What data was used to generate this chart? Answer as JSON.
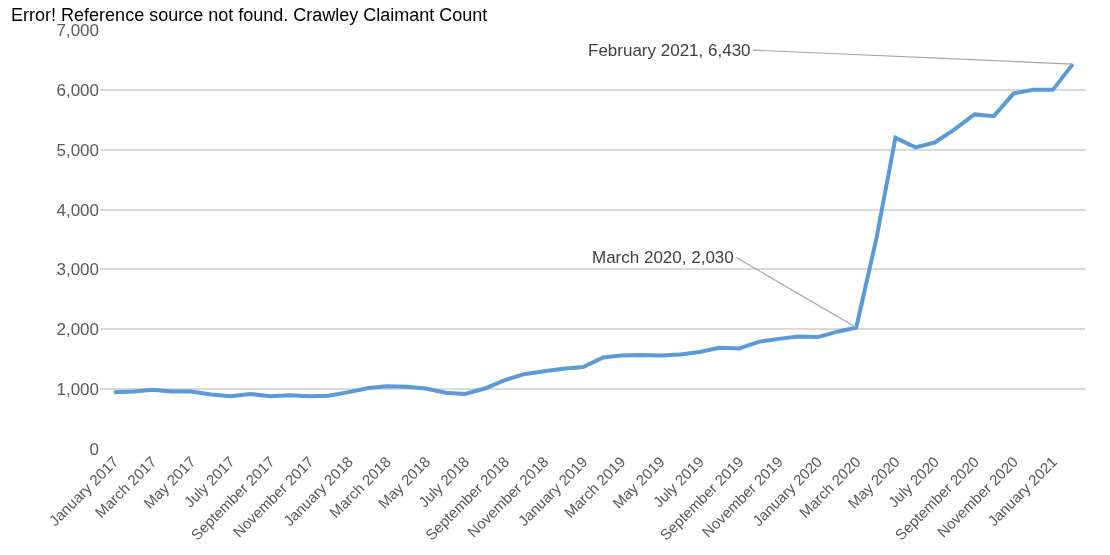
{
  "chart_data": {
    "type": "line",
    "title": "Error! Reference source not found. Crawley Claimant Count",
    "x": [
      "2017-01",
      "2017-02",
      "2017-03",
      "2017-04",
      "2017-05",
      "2017-06",
      "2017-07",
      "2017-08",
      "2017-09",
      "2017-10",
      "2017-11",
      "2017-12",
      "2018-01",
      "2018-02",
      "2018-03",
      "2018-04",
      "2018-05",
      "2018-06",
      "2018-07",
      "2018-08",
      "2018-09",
      "2018-10",
      "2018-11",
      "2018-12",
      "2019-01",
      "2019-02",
      "2019-03",
      "2019-04",
      "2019-05",
      "2019-06",
      "2019-07",
      "2019-08",
      "2019-09",
      "2019-10",
      "2019-11",
      "2019-12",
      "2020-01",
      "2020-02",
      "2020-03",
      "2020-04",
      "2020-05",
      "2020-06",
      "2020-07",
      "2020-08",
      "2020-09",
      "2020-10",
      "2020-11",
      "2020-12",
      "2021-01",
      "2021-02"
    ],
    "series": [
      {
        "color": "#5b9bd5",
        "values": [
          950,
          960,
          990,
          960,
          960,
          910,
          880,
          920,
          880,
          900,
          880,
          890,
          950,
          1020,
          1050,
          1040,
          1010,
          940,
          920,
          1010,
          1150,
          1250,
          1300,
          1340,
          1370,
          1530,
          1560,
          1570,
          1560,
          1580,
          1620,
          1690,
          1680,
          1790,
          1840,
          1880,
          1870,
          1960,
          2030,
          3500,
          5200,
          5040,
          5120,
          5340,
          5590,
          5560,
          5940,
          6000,
          6000,
          6430
        ]
      }
    ],
    "annotations": [
      {
        "text": "March 2020, 2,030",
        "x": "2020-03",
        "y": 2030
      },
      {
        "text": "February 2021, 6,430",
        "x": "2021-02",
        "y": 6430
      }
    ],
    "xlim": [
      "2016-12-10",
      "2021-02-20"
    ],
    "xticks": [
      {
        "value": "2017-01",
        "label": "January 2017"
      },
      {
        "value": "2017-03",
        "label": "March 2017"
      },
      {
        "value": "2017-05",
        "label": "May 2017"
      },
      {
        "value": "2017-07",
        "label": "July 2017"
      },
      {
        "value": "2017-09",
        "label": "September 2017"
      },
      {
        "value": "2017-11",
        "label": "November 2017"
      },
      {
        "value": "2018-01",
        "label": "January 2018"
      },
      {
        "value": "2018-03",
        "label": "March 2018"
      },
      {
        "value": "2018-05",
        "label": "May 2018"
      },
      {
        "value": "2018-07",
        "label": "July 2018"
      },
      {
        "value": "2018-09",
        "label": "September 2018"
      },
      {
        "value": "2018-11",
        "label": "November 2018"
      },
      {
        "value": "2019-01",
        "label": "January 2019"
      },
      {
        "value": "2019-03",
        "label": "March 2019"
      },
      {
        "value": "2019-05",
        "label": "May 2019"
      },
      {
        "value": "2019-07",
        "label": "July 2019"
      },
      {
        "value": "2019-09",
        "label": "September 2019"
      },
      {
        "value": "2019-11",
        "label": "November 2019"
      },
      {
        "value": "2020-01",
        "label": "January 2020"
      },
      {
        "value": "2020-03",
        "label": "March 2020"
      },
      {
        "value": "2020-05",
        "label": "May 2020"
      },
      {
        "value": "2020-07",
        "label": "July 2020"
      },
      {
        "value": "2020-09",
        "label": "September 2020"
      },
      {
        "value": "2020-11",
        "label": "November 2020"
      },
      {
        "value": "2021-01",
        "label": "January 2021"
      }
    ],
    "ylim": [
      0,
      7000
    ],
    "yticks": [
      {
        "value": 0,
        "label": "0"
      },
      {
        "value": 1000,
        "label": "1,000"
      },
      {
        "value": 2000,
        "label": "2,000"
      },
      {
        "value": 3000,
        "label": "3,000"
      },
      {
        "value": 4000,
        "label": "4,000"
      },
      {
        "value": 5000,
        "label": "5,000"
      },
      {
        "value": 6000,
        "label": "6,000"
      },
      {
        "value": 7000,
        "label": "7,000"
      }
    ],
    "grid": "y",
    "legend": false,
    "marker": "none",
    "line_style": "solid"
  }
}
